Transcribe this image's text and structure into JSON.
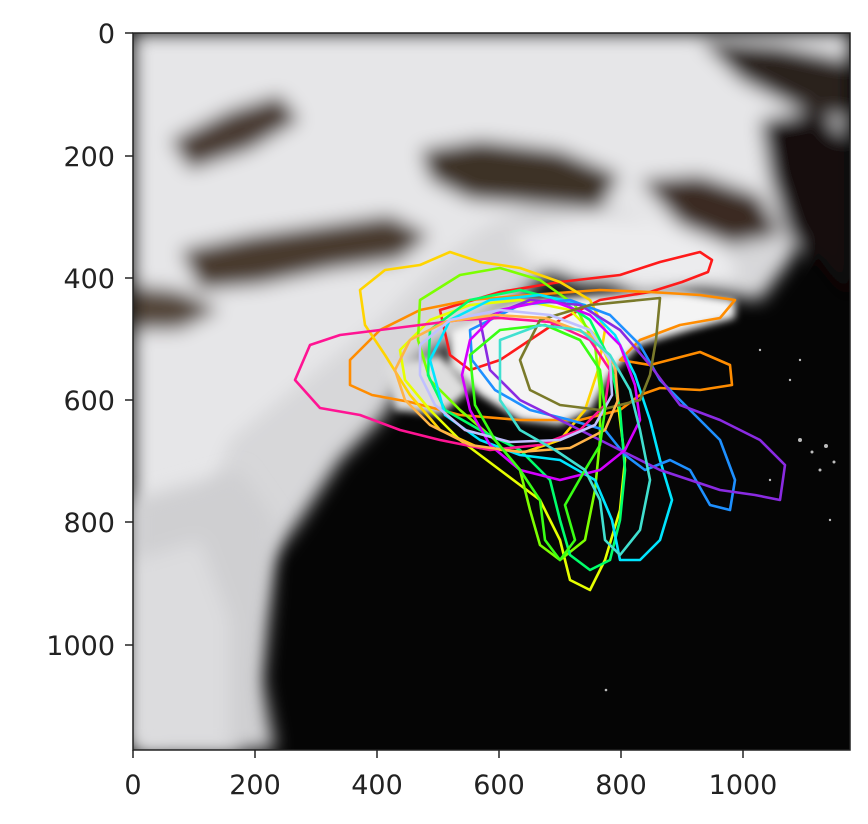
{
  "figure": {
    "type": "image",
    "description_visible": "satellite cloud imagery with overlaid colored contour outlines"
  },
  "axes": {
    "x_ticks": [
      "0",
      "200",
      "400",
      "600",
      "800",
      "1000"
    ],
    "y_ticks": [
      "0",
      "200",
      "400",
      "600",
      "800",
      "1000"
    ],
    "x_range": [
      0,
      1180
    ],
    "y_range": [
      1180,
      0
    ]
  },
  "colors": {
    "axes": "#222222",
    "background": "#000000",
    "contours": [
      "#ff1a1a",
      "#ff8c00",
      "#ffd400",
      "#e6ff00",
      "#7cff00",
      "#00ff6a",
      "#00e5ff",
      "#1e90ff",
      "#8a2be2",
      "#d400ff",
      "#ff1493",
      "#7a7a2a",
      "#ffb347",
      "#c0c0ff"
    ]
  }
}
